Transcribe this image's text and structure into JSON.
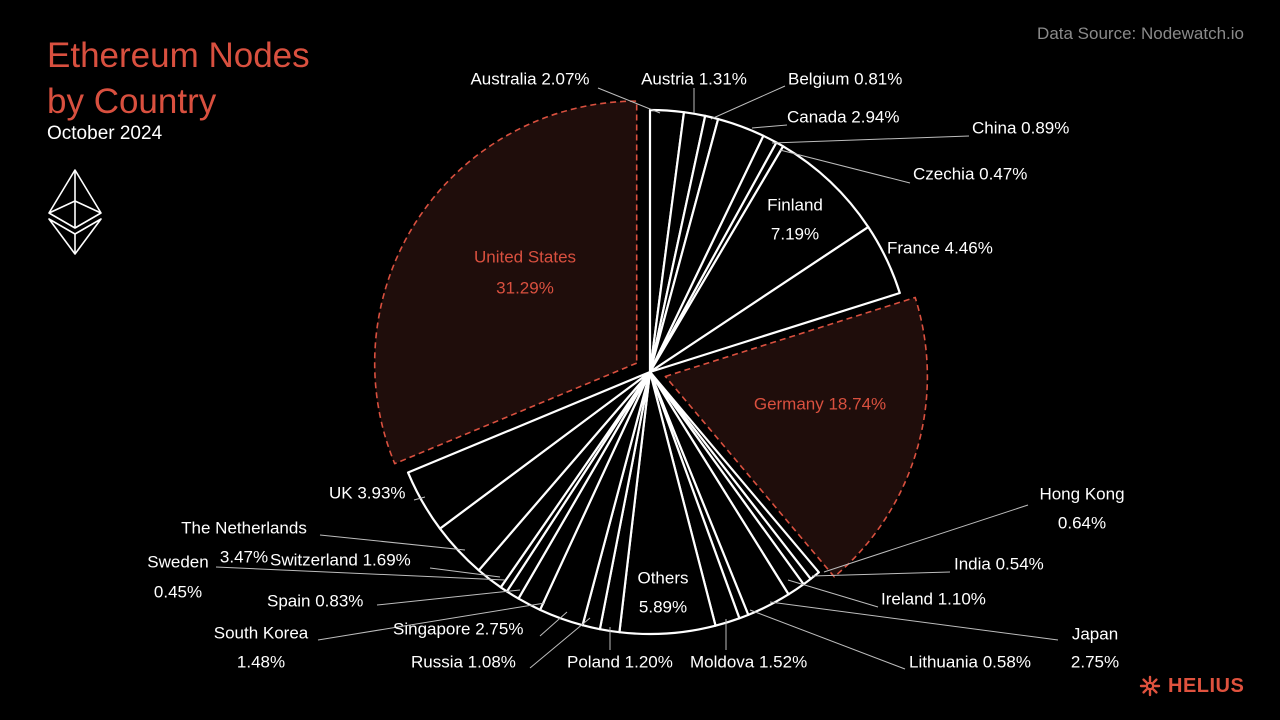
{
  "header": {
    "title_line1": "Ethereum Nodes",
    "title_line2": "by Country",
    "subtitle": "October 2024",
    "source": "Data Source: Nodewatch.io"
  },
  "brand": {
    "name": "HELIUS",
    "icon": "helius-logo-icon"
  },
  "logo": {
    "icon": "ethereum-logo-icon"
  },
  "colors": {
    "background": "#000000",
    "accent": "#d9503f",
    "highlight_fill": "#1f0d0b",
    "slice_fill": "#000000",
    "slice_stroke": "#ffffff"
  },
  "chart_data": {
    "type": "pie",
    "title": "",
    "values_unit": "%",
    "slices": [
      {
        "name": "Australia",
        "value": 2.07,
        "label": "Australia 2.07%"
      },
      {
        "name": "Austria",
        "value": 1.31,
        "label": "Austria 1.31%"
      },
      {
        "name": "Belgium",
        "value": 0.81,
        "label": "Belgium 0.81%"
      },
      {
        "name": "Canada",
        "value": 2.94,
        "label": "Canada 2.94%"
      },
      {
        "name": "China",
        "value": 0.89,
        "label": "China 0.89%"
      },
      {
        "name": "Czechia",
        "value": 0.47,
        "label": "Czechia 0.47%"
      },
      {
        "name": "Finland",
        "value": 7.19,
        "label_line1": "Finland",
        "label_line2": "7.19%"
      },
      {
        "name": "France",
        "value": 4.46,
        "label": "France 4.46%"
      },
      {
        "name": "Germany",
        "value": 18.74,
        "label": "Germany 18.74%",
        "highlight": true
      },
      {
        "name": "Hong Kong",
        "value": 0.64,
        "label_line1": "Hong Kong",
        "label_line2": "0.64%"
      },
      {
        "name": "India",
        "value": 0.54,
        "label": "India 0.54%"
      },
      {
        "name": "Ireland",
        "value": 1.1,
        "label": "Ireland 1.10%"
      },
      {
        "name": "Japan",
        "value": 2.75,
        "label_line1": "Japan",
        "label_line2": "2.75%"
      },
      {
        "name": "Lithuania",
        "value": 0.58,
        "label": "Lithuania 0.58%"
      },
      {
        "name": "Moldova",
        "value": 1.52,
        "label": "Moldova 1.52%"
      },
      {
        "name": "Others",
        "value": 5.89,
        "label_line1": "Others",
        "label_line2": "5.89%"
      },
      {
        "name": "Poland",
        "value": 1.2,
        "label": "Poland 1.20%"
      },
      {
        "name": "Russia",
        "value": 1.08,
        "label": "Russia 1.08%"
      },
      {
        "name": "Singapore",
        "value": 2.75,
        "label": "Singapore 2.75%"
      },
      {
        "name": "South Korea",
        "value": 1.48,
        "label_line1": "South Korea",
        "label_line2": "1.48%"
      },
      {
        "name": "Spain",
        "value": 0.83,
        "label": "Spain 0.83%"
      },
      {
        "name": "Sweden",
        "value": 0.45,
        "label_line1": "Sweden",
        "label_line2": "0.45%"
      },
      {
        "name": "Switzerland",
        "value": 1.69,
        "label": "Switzerland 1.69%"
      },
      {
        "name": "The Netherlands",
        "value": 3.47,
        "label_line1": "The Netherlands",
        "label_line2": "3.47%"
      },
      {
        "name": "UK",
        "value": 3.93,
        "label": "UK 3.93%"
      },
      {
        "name": "United States",
        "value": 31.29,
        "label_line1": "United States",
        "label_line2": "31.29%",
        "highlight": true
      }
    ]
  }
}
